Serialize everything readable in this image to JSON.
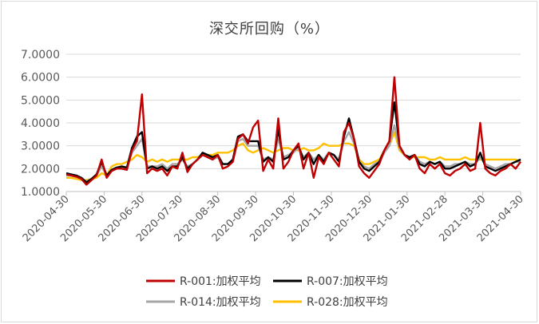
{
  "chart_data": {
    "type": "line",
    "title": "深交所回购（%）",
    "xlabel": "",
    "ylabel": "",
    "ylim": [
      1.0,
      7.0
    ],
    "y_ticks": [
      "1.0000",
      "2.0000",
      "3.0000",
      "4.0000",
      "5.0000",
      "6.0000",
      "7.0000"
    ],
    "x_ticks": [
      "2020-04-30",
      "2020-05-30",
      "2020-06-30",
      "2020-07-30",
      "2020-08-30",
      "2020-09-30",
      "2020-10-30",
      "2020-11-30",
      "2020-12-30",
      "2021-01-30",
      "2021-02-28",
      "2021-03-30",
      "2021-04-30"
    ],
    "legend_position": "bottom",
    "grid": true,
    "series": [
      {
        "name": "R-001:加权平均",
        "color": "#c00000",
        "values": [
          1.75,
          1.7,
          1.65,
          1.55,
          1.3,
          1.5,
          1.7,
          2.4,
          1.6,
          1.9,
          2.0,
          2.0,
          1.95,
          2.8,
          3.2,
          5.25,
          1.8,
          2.0,
          1.9,
          2.0,
          1.7,
          2.1,
          2.0,
          2.7,
          1.85,
          2.2,
          2.4,
          2.6,
          2.5,
          2.4,
          2.6,
          2.0,
          2.1,
          2.3,
          3.3,
          3.5,
          3.1,
          3.8,
          4.1,
          1.9,
          2.4,
          2.0,
          4.2,
          2.0,
          2.3,
          2.8,
          3.1,
          2.0,
          2.7,
          1.6,
          2.5,
          2.2,
          2.7,
          2.4,
          2.1,
          3.6,
          4.0,
          3.3,
          2.1,
          1.8,
          1.6,
          1.9,
          2.2,
          2.8,
          3.2,
          6.0,
          3.0,
          2.6,
          2.4,
          2.6,
          2.0,
          1.8,
          2.2,
          2.0,
          2.2,
          1.8,
          1.7,
          1.9,
          2.0,
          2.2,
          1.9,
          2.0,
          4.0,
          2.0,
          1.8,
          1.7,
          1.9,
          2.0,
          2.2,
          2.0,
          2.3
        ],
        "peaks": "R-001 spikes near 2020-06-30 (~5.25), 2020-10-30 (~4.2), 2021-01-30 (~6.0), 2021-03-30 (~4.0)"
      },
      {
        "name": "R-007:加权平均",
        "color": "#000000",
        "values": [
          1.8,
          1.75,
          1.7,
          1.6,
          1.4,
          1.55,
          1.75,
          2.3,
          1.7,
          1.95,
          2.05,
          2.1,
          2.05,
          2.9,
          3.4,
          3.6,
          2.0,
          2.1,
          2.0,
          2.1,
          1.9,
          2.1,
          2.1,
          2.5,
          2.0,
          2.2,
          2.4,
          2.7,
          2.6,
          2.5,
          2.6,
          2.2,
          2.2,
          2.4,
          3.4,
          3.5,
          3.2,
          3.2,
          3.2,
          2.3,
          2.5,
          2.3,
          3.7,
          2.4,
          2.5,
          2.8,
          3.0,
          2.4,
          2.7,
          2.2,
          2.6,
          2.3,
          2.7,
          2.6,
          2.3,
          3.4,
          4.2,
          3.3,
          2.3,
          2.0,
          1.9,
          2.1,
          2.3,
          2.8,
          3.2,
          4.9,
          3.0,
          2.6,
          2.5,
          2.6,
          2.2,
          2.1,
          2.3,
          2.2,
          2.3,
          2.0,
          2.0,
          2.1,
          2.2,
          2.3,
          2.1,
          2.2,
          2.7,
          2.1,
          2.0,
          1.9,
          2.0,
          2.1,
          2.2,
          2.3,
          2.4
        ]
      },
      {
        "name": "R-014:加权平均",
        "color": "#a6a6a6",
        "values": [
          1.7,
          1.7,
          1.65,
          1.55,
          1.45,
          1.55,
          1.7,
          2.1,
          1.7,
          1.9,
          2.0,
          2.05,
          2.0,
          2.7,
          3.0,
          3.3,
          2.1,
          2.1,
          2.1,
          2.2,
          2.0,
          2.2,
          2.2,
          2.4,
          2.1,
          2.2,
          2.4,
          2.6,
          2.5,
          2.4,
          2.5,
          2.2,
          2.2,
          2.4,
          3.2,
          3.3,
          3.0,
          3.0,
          3.0,
          2.4,
          2.5,
          2.4,
          3.3,
          2.5,
          2.6,
          2.7,
          2.9,
          2.5,
          2.7,
          2.4,
          2.6,
          2.4,
          2.7,
          2.6,
          2.4,
          3.2,
          3.6,
          3.1,
          2.3,
          2.1,
          2.0,
          2.2,
          2.3,
          2.7,
          3.0,
          3.9,
          2.9,
          2.6,
          2.5,
          2.6,
          2.3,
          2.2,
          2.3,
          2.2,
          2.3,
          2.1,
          2.1,
          2.2,
          2.2,
          2.3,
          2.2,
          2.2,
          2.5,
          2.2,
          2.1,
          2.0,
          2.1,
          2.2,
          2.2,
          2.3,
          2.3
        ]
      },
      {
        "name": "R-028:加权平均",
        "color": "#ffc000",
        "values": [
          1.6,
          1.6,
          1.55,
          1.5,
          1.5,
          1.55,
          1.6,
          1.8,
          1.7,
          2.1,
          2.2,
          2.2,
          2.3,
          2.4,
          2.6,
          2.5,
          2.3,
          2.4,
          2.3,
          2.4,
          2.3,
          2.4,
          2.4,
          2.4,
          2.4,
          2.5,
          2.5,
          2.6,
          2.6,
          2.6,
          2.7,
          2.7,
          2.7,
          2.8,
          3.0,
          3.1,
          2.8,
          2.7,
          2.8,
          2.9,
          2.8,
          2.7,
          2.8,
          2.9,
          2.9,
          2.8,
          2.8,
          2.9,
          2.8,
          2.8,
          2.9,
          3.1,
          3.0,
          3.0,
          3.0,
          3.1,
          3.1,
          3.0,
          2.4,
          2.2,
          2.2,
          2.3,
          2.4,
          2.8,
          3.0,
          3.6,
          2.8,
          2.6,
          2.5,
          2.5,
          2.5,
          2.5,
          2.4,
          2.4,
          2.5,
          2.4,
          2.4,
          2.4,
          2.4,
          2.5,
          2.4,
          2.4,
          2.4,
          2.4,
          2.4,
          2.4,
          2.4,
          2.4,
          2.4,
          2.4,
          2.3
        ]
      }
    ]
  }
}
